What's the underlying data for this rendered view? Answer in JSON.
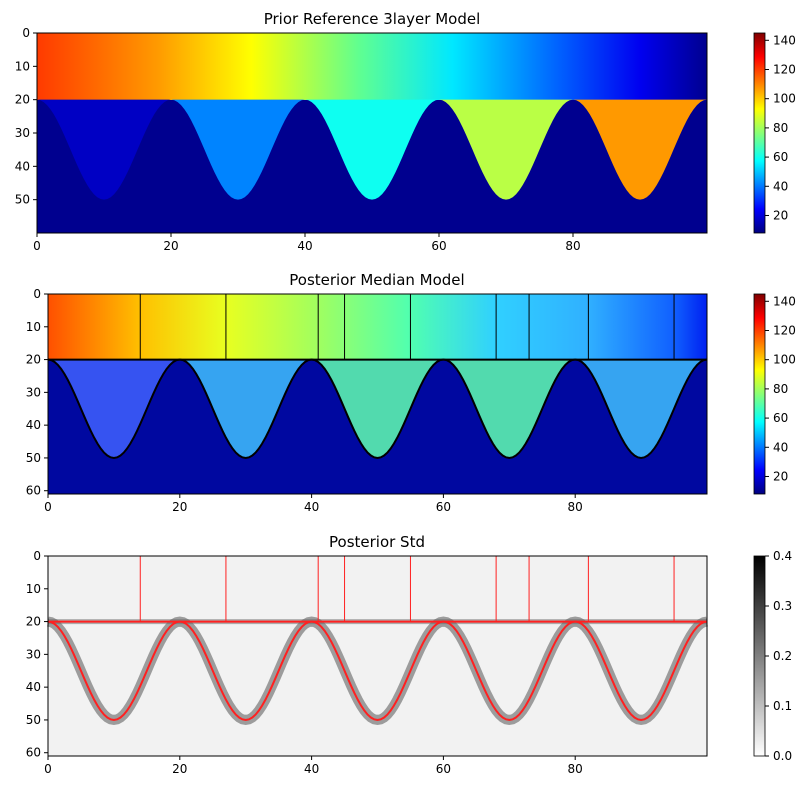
{
  "chart_data": [
    {
      "type": "heatmap",
      "title": "Prior Reference 3layer Model",
      "xlim": [
        0,
        100
      ],
      "ylim": [
        60,
        0
      ],
      "xticks": [
        0,
        20,
        40,
        60,
        80
      ],
      "yticks": [
        0,
        10,
        20,
        30,
        40,
        50
      ],
      "colormap": "jet",
      "colorbar": {
        "min": 8,
        "max": 145,
        "ticks": [
          20,
          40,
          60,
          80,
          100,
          120,
          140
        ]
      },
      "layers": [
        {
          "name": "top layer",
          "depth_range": [
            0,
            20
          ],
          "value_gradient_left_to_right": [
            130,
            8
          ]
        },
        {
          "name": "sinusoidal layer",
          "top_depth": 20,
          "trough_depth": 50,
          "trough_x": [
            10,
            30,
            50,
            70,
            90
          ],
          "trough_values": [
            12,
            40,
            60,
            85,
            110
          ]
        },
        {
          "name": "background",
          "value": 8
        }
      ]
    },
    {
      "type": "heatmap",
      "title": "Posterior Median Model",
      "xlim": [
        0,
        100
      ],
      "ylim": [
        61,
        0
      ],
      "xticks": [
        0,
        20,
        40,
        60,
        80
      ],
      "yticks": [
        0,
        10,
        20,
        30,
        40,
        50,
        60
      ],
      "colormap": "jet",
      "colorbar": {
        "min": 8,
        "max": 145,
        "ticks": [
          20,
          40,
          60,
          80,
          100,
          120,
          140
        ]
      },
      "overlay_color": "#000000",
      "block_edges_x": [
        0,
        14,
        27,
        41,
        45,
        55,
        68,
        73,
        82,
        95,
        100
      ],
      "interface_depth": 20,
      "sinusoid": {
        "top": 20,
        "bottom": 50,
        "trough_x": [
          10,
          30,
          50,
          70,
          90
        ]
      }
    },
    {
      "type": "heatmap",
      "title": "Posterior Std",
      "xlim": [
        0,
        100
      ],
      "ylim": [
        61,
        0
      ],
      "xticks": [
        0,
        20,
        40,
        60,
        80
      ],
      "yticks": [
        0,
        10,
        20,
        30,
        40,
        50,
        60
      ],
      "colormap": "gray_r",
      "colorbar": {
        "min": 0.0,
        "max": 0.4,
        "ticks": [
          "0.0",
          "0.1",
          "0.2",
          "0.3",
          "0.4"
        ]
      },
      "overlay_color": "#ff2020",
      "block_edges_x": [
        0,
        14,
        27,
        41,
        45,
        55,
        68,
        73,
        82,
        95,
        100
      ],
      "interface_depth": 20,
      "sinusoid": {
        "top": 20,
        "bottom": 50,
        "trough_x": [
          10,
          30,
          50,
          70,
          90
        ]
      }
    }
  ]
}
